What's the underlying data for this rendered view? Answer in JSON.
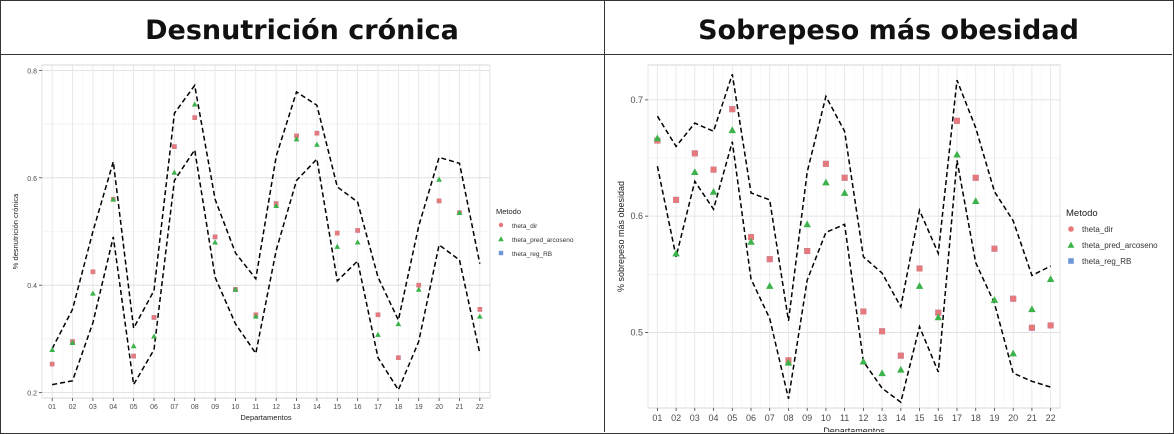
{
  "panels": [
    {
      "title": "Desnutrición crónica"
    },
    {
      "title": "Sobrepeso más obesidad"
    }
  ],
  "legend": {
    "title": "Metodo",
    "entries": [
      {
        "label": "theta_dir",
        "color": "#E8797A",
        "shape": "circle"
      },
      {
        "label": "theta_pred_arcoseno",
        "color": "#3CB24A",
        "shape": "triangle"
      },
      {
        "label": "theta_reg_RB",
        "color": "#6E97D8",
        "shape": "square"
      }
    ]
  },
  "chart_data": [
    {
      "type": "scatter",
      "xlabel": "Departamentos",
      "ylabel": "% desnutrición crónica",
      "categories": [
        "01",
        "02",
        "03",
        "04",
        "05",
        "06",
        "07",
        "08",
        "09",
        "10",
        "11",
        "12",
        "13",
        "14",
        "15",
        "16",
        "17",
        "18",
        "19",
        "20",
        "21",
        "22"
      ],
      "yticks": [
        0.2,
        0.4,
        0.6,
        0.8
      ],
      "ylim": [
        0.19,
        0.81
      ],
      "grid": true,
      "legend_position": "right",
      "series": [
        {
          "name": "theta_dir",
          "values": [
            0.253,
            0.295,
            0.425,
            0.56,
            0.268,
            0.34,
            0.658,
            0.712,
            0.49,
            0.392,
            0.345,
            0.552,
            0.678,
            0.683,
            0.497,
            0.502,
            0.345,
            0.265,
            0.4,
            0.557,
            0.535,
            0.355
          ]
        },
        {
          "name": "theta_pred_arcoseno",
          "values": [
            0.28,
            0.293,
            0.385,
            0.56,
            0.287,
            0.305,
            0.61,
            0.737,
            0.48,
            0.392,
            0.342,
            0.548,
            0.672,
            0.662,
            0.472,
            0.48,
            0.308,
            0.328,
            0.392,
            0.597,
            0.535,
            0.342
          ]
        },
        {
          "name": "theta_reg_RB",
          "values": [
            0.253,
            0.295,
            0.425,
            0.56,
            0.268,
            0.34,
            0.658,
            0.712,
            0.49,
            0.392,
            0.345,
            0.552,
            0.678,
            0.683,
            0.497,
            0.502,
            0.345,
            0.265,
            0.4,
            0.557,
            0.535,
            0.355
          ]
        }
      ],
      "bands": {
        "upper": [
          0.282,
          0.355,
          0.5,
          0.63,
          0.32,
          0.39,
          0.72,
          0.772,
          0.56,
          0.46,
          0.412,
          0.64,
          0.76,
          0.735,
          0.583,
          0.555,
          0.415,
          0.335,
          0.51,
          0.638,
          0.627,
          0.44
        ],
        "lower": [
          0.215,
          0.222,
          0.33,
          0.49,
          0.215,
          0.28,
          0.595,
          0.652,
          0.415,
          0.328,
          0.273,
          0.465,
          0.595,
          0.635,
          0.408,
          0.445,
          0.265,
          0.205,
          0.295,
          0.475,
          0.447,
          0.273
        ]
      }
    },
    {
      "type": "scatter",
      "xlabel": "Departamentos",
      "ylabel": "% sobrepeso más obesidad",
      "categories": [
        "01",
        "02",
        "03",
        "04",
        "05",
        "06",
        "07",
        "08",
        "09",
        "10",
        "11",
        "12",
        "13",
        "14",
        "15",
        "16",
        "17",
        "18",
        "19",
        "20",
        "21",
        "22"
      ],
      "yticks": [
        0.5,
        0.6,
        0.7
      ],
      "ylim": [
        0.435,
        0.73
      ],
      "grid": true,
      "legend_position": "right",
      "series": [
        {
          "name": "theta_dir",
          "values": [
            0.665,
            0.614,
            0.654,
            0.64,
            0.692,
            0.582,
            0.563,
            0.476,
            0.57,
            0.645,
            0.633,
            0.518,
            0.501,
            0.48,
            0.555,
            0.517,
            0.682,
            0.633,
            0.572,
            0.529,
            0.504,
            0.506
          ]
        },
        {
          "name": "theta_pred_arcoseno",
          "values": [
            0.667,
            0.568,
            0.638,
            0.621,
            0.674,
            0.578,
            0.54,
            0.474,
            0.593,
            0.629,
            0.62,
            0.475,
            0.465,
            0.468,
            0.54,
            0.513,
            0.653,
            0.613,
            0.528,
            0.482,
            0.52,
            0.546
          ]
        },
        {
          "name": "theta_reg_RB",
          "values": [
            0.665,
            0.614,
            0.654,
            0.64,
            0.692,
            0.582,
            0.563,
            0.476,
            0.57,
            0.645,
            0.633,
            0.518,
            0.501,
            0.48,
            0.555,
            0.517,
            0.682,
            0.633,
            0.572,
            0.529,
            0.504,
            0.506
          ]
        }
      ],
      "bands": {
        "upper": [
          0.686,
          0.66,
          0.68,
          0.673,
          0.722,
          0.62,
          0.614,
          0.51,
          0.638,
          0.703,
          0.673,
          0.565,
          0.551,
          0.522,
          0.605,
          0.568,
          0.717,
          0.676,
          0.621,
          0.596,
          0.549,
          0.557
        ],
        "lower": [
          0.643,
          0.565,
          0.63,
          0.606,
          0.664,
          0.546,
          0.512,
          0.443,
          0.545,
          0.586,
          0.593,
          0.475,
          0.452,
          0.44,
          0.505,
          0.466,
          0.648,
          0.56,
          0.525,
          0.465,
          0.458,
          0.453
        ]
      }
    }
  ]
}
